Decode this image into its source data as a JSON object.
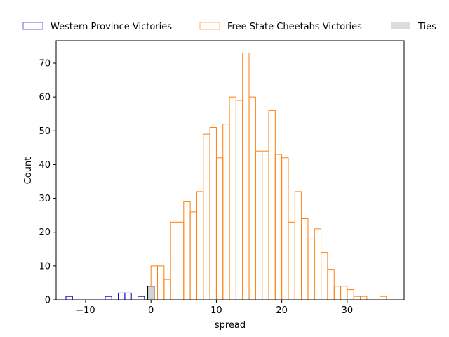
{
  "chart_data": {
    "type": "bar",
    "subtype": "histogram",
    "xlabel": "spread",
    "ylabel": "Count",
    "xlim": [
      -14.5,
      38.7
    ],
    "ylim": [
      0,
      76.65
    ],
    "xticks": [
      -10,
      0,
      10,
      20,
      30
    ],
    "yticks": [
      0,
      10,
      20,
      30,
      40,
      50,
      60,
      70
    ],
    "bin_width": 1,
    "grid": false,
    "legend_position": "top, outside plot, horizontal",
    "series": [
      {
        "name": "Western Province Victories",
        "color": "#0000cc",
        "style": "outline",
        "bins": [
          {
            "x0": -13,
            "x1": -12,
            "count": 1
          },
          {
            "x0": -7,
            "x1": -6,
            "count": 1
          },
          {
            "x0": -5,
            "x1": -4,
            "count": 2
          },
          {
            "x0": -4,
            "x1": -3,
            "count": 2
          },
          {
            "x0": -2,
            "x1": -1,
            "count": 1
          }
        ]
      },
      {
        "name": "Free State Cheetahs Victories",
        "color": "#ff7f0e",
        "style": "outline",
        "bins": [
          {
            "x0": 0,
            "x1": 1,
            "count": 10
          },
          {
            "x0": 1,
            "x1": 2,
            "count": 10
          },
          {
            "x0": 2,
            "x1": 3,
            "count": 6
          },
          {
            "x0": 3,
            "x1": 4,
            "count": 23
          },
          {
            "x0": 4,
            "x1": 5,
            "count": 23
          },
          {
            "x0": 5,
            "x1": 6,
            "count": 29
          },
          {
            "x0": 6,
            "x1": 7,
            "count": 26
          },
          {
            "x0": 7,
            "x1": 8,
            "count": 32
          },
          {
            "x0": 8,
            "x1": 9,
            "count": 49
          },
          {
            "x0": 9,
            "x1": 10,
            "count": 51
          },
          {
            "x0": 10,
            "x1": 11,
            "count": 42
          },
          {
            "x0": 11,
            "x1": 12,
            "count": 52
          },
          {
            "x0": 12,
            "x1": 13,
            "count": 60
          },
          {
            "x0": 13,
            "x1": 14,
            "count": 59
          },
          {
            "x0": 14,
            "x1": 15,
            "count": 73
          },
          {
            "x0": 15,
            "x1": 16,
            "count": 60
          },
          {
            "x0": 16,
            "x1": 17,
            "count": 44
          },
          {
            "x0": 17,
            "x1": 18,
            "count": 44
          },
          {
            "x0": 18,
            "x1": 19,
            "count": 56
          },
          {
            "x0": 19,
            "x1": 20,
            "count": 43
          },
          {
            "x0": 20,
            "x1": 21,
            "count": 42
          },
          {
            "x0": 21,
            "x1": 22,
            "count": 23
          },
          {
            "x0": 22,
            "x1": 23,
            "count": 32
          },
          {
            "x0": 23,
            "x1": 24,
            "count": 24
          },
          {
            "x0": 24,
            "x1": 25,
            "count": 18
          },
          {
            "x0": 25,
            "x1": 26,
            "count": 21
          },
          {
            "x0": 26,
            "x1": 27,
            "count": 14
          },
          {
            "x0": 27,
            "x1": 28,
            "count": 9
          },
          {
            "x0": 28,
            "x1": 29,
            "count": 4
          },
          {
            "x0": 29,
            "x1": 30,
            "count": 4
          },
          {
            "x0": 30,
            "x1": 31,
            "count": 3
          },
          {
            "x0": 31,
            "x1": 32,
            "count": 1
          },
          {
            "x0": 32,
            "x1": 33,
            "count": 1
          },
          {
            "x0": 35,
            "x1": 36,
            "count": 1
          }
        ]
      },
      {
        "name": "Ties",
        "color": "#d3d3d3",
        "style": "filled",
        "bins": [
          {
            "x0": -0.5,
            "x1": 0.5,
            "count": 4
          }
        ]
      }
    ]
  }
}
